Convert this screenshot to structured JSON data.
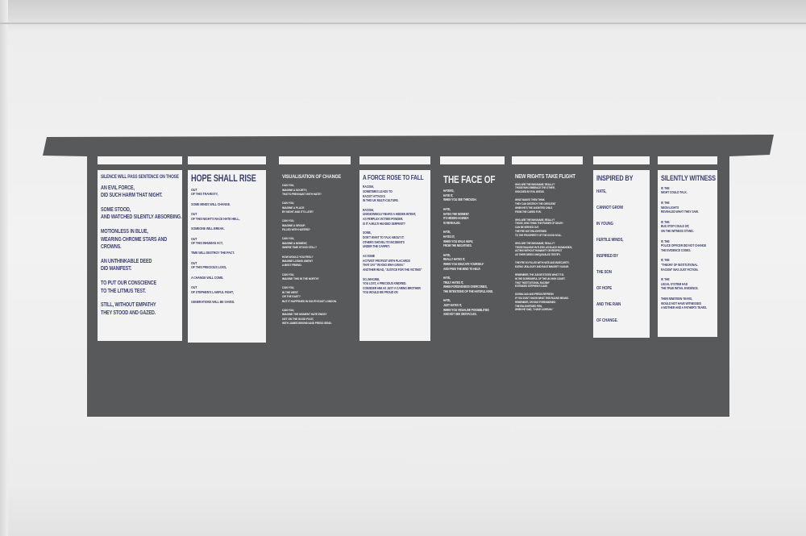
{
  "colors": {
    "board": "#58595b",
    "panel_light": "#f3f3f4",
    "text_light_panel": "#3b3f6d",
    "text_dark_panel": "#f1f1f1",
    "wall": "#f0f0f0"
  },
  "panels": [
    {
      "title": "SILENCE WILL PASS SENTENCE ON THOSE",
      "theme": "light",
      "stanzas": [
        [
          "AN EVIL FORCE,",
          "DID SUCH HARM THAT NIGHT."
        ],
        [
          "SOME STOOD,",
          "AND WATCHED SILENTLY ABSORBING."
        ],
        [
          "MOTIONLESS IN BLUE,",
          "WEARING CHROME STARS AND",
          "CROWNS."
        ],
        [
          "AN UNTHINKABLE DEED",
          "DID MANIFEST."
        ],
        [
          "TO PUT OUR CONSCIENCE",
          "TO THE LITMUS TEST."
        ],
        [
          "STILL, WITHOUT EMPATHY",
          "THEY STOOD AND GAZED."
        ]
      ]
    },
    {
      "title": "HOPE SHALL RISE",
      "theme": "light",
      "stanzas": [
        [
          "OUT",
          "OF THIS TRAVESTY,"
        ],
        [
          "SOME MINDS WILL CHANGE."
        ],
        [
          "OUT",
          "OF THIS NIGHT'S RACE HATE HELL,"
        ],
        [
          "SOMEONE WILL BREAK."
        ],
        [
          "OUT",
          "OF THIS INHUMAN ACT,"
        ],
        [
          "TIME WILL DESTROY THE PACT."
        ],
        [
          "OUT",
          "OF THIS PRECIOUS LOSS,"
        ],
        [
          "A CHANGE WILL COME."
        ],
        [
          "OUT",
          "OF STEPHEN'S LAWFUL FIGHT,"
        ],
        [
          "GENERATIONS WILL BE SAVED."
        ]
      ]
    },
    {
      "title": "VISUALISATION OF CHANGE",
      "theme": "dark",
      "stanzas": [
        [
          "CAN YOU,",
          "IMAGINE A SOCIETY,",
          "THAT'S PREGNANT WITH HATE?"
        ],
        [
          "CAN YOU,",
          "IMAGINE A PLACE",
          "BY NIGHT AND IT'S LATE?"
        ],
        [
          "CAN YOU,",
          "IMAGINE A GROUP,",
          "FILLED WITH HATERS?"
        ],
        [
          "CAN YOU,",
          "IMAGINE A MOMENT,",
          "WHERE TIME STOOD STILL?"
        ],
        [
          "HOW WOULD YOU FEEL?",
          "IMAGINE LOSING ANEW?",
          "A BEST FRIEND."
        ],
        [
          "CAN YOU,",
          "IMAGINE THIS IN THE NORTH?"
        ],
        [
          "CAN YOU,",
          "IN THE WEST",
          "OR THE EAST?",
          "BUT IT HAPPENED IN SOUTH EAST LONDON."
        ],
        [
          "CAN YOU,",
          "IMAGINE THE MOMENT HATE ENDS?",
          "GET ON THE GOOD FOOT,",
          "WITH JAMES BROWN AND PRESS SEND."
        ]
      ]
    },
    {
      "title": "A FORCE ROSE TO FALL",
      "theme": "light",
      "stanzas": [
        [
          "RACISM,",
          "SOMETIMES LEADS TO",
          "RACIST ATTACKS",
          "IN THIS UK MULTI-CULTURE."
        ],
        [
          "RACISM,",
          "UNKNOWINGLY REARS A HIDDEN INTENT,",
          "AS PERPLEX VICTIMS PONDER.",
          "IS IT A MULTI HEADED SERPENT?"
        ],
        [
          "SOME,",
          "DON'T WANT TO TALK ABOUT IT.",
          "OTHERS SHOVEL ITS INCIDENTS",
          "UNDER THE CARPET."
        ],
        [
          "AS SOME",
          "ACTIVIST PROTEST WITH PLACARDS",
          "THAT SAY \"WI KNO WHA GWAN.\"",
          "ANOTHER READ, \"JUSTICE FOR THE VICTIMS\""
        ],
        [
          "SO, IMAGINE,",
          "YOU LOST, A PRECIOUS KINDRED.",
          "CONSIDER HIM AS JUST A CARING BROTHER",
          "YOU WOULD BE PROUD OF."
        ]
      ]
    },
    {
      "title": "THE FACE OF",
      "theme": "dark",
      "stanzas": [
        [
          "HATERS,",
          "HATE IT,",
          "WHEN YOU SEE THROUGH."
        ],
        [
          "HATE,",
          "HATES THE MOMENT",
          "ITS HIDDEN AGENDA",
          "IS REVEALED."
        ],
        [
          "HATE,",
          "HATES IT,",
          "WHEN YOU WALK AWAY,",
          "FROM THE NEGATIVES."
        ],
        [
          "HATE,",
          "REALLY HATES IT,",
          "WHEN YOU EDUCATE YOURSELF",
          "AND FREE THE MIND TO HELP."
        ],
        [
          "HATE,",
          "TRULY HATES IT,",
          "WHEN FORGIVENESS OVERCOMES,",
          "THE INTENTIONS OF THE HATEFUL KIND."
        ],
        [
          "HATE,",
          "JUST HATES IT,",
          "WHEN YOU VISUALISE POSSIBILITIES",
          "AND NOT SEE OBSTACLES."
        ]
      ]
    },
    {
      "title": "NEW RIGHTS TAKE FLIGHT",
      "theme": "dark",
      "stanzas": [
        [
          "WHO ARE THE INHUMANE, REALLY?",
          "THOSE WHO EMBRACE THE OTHER,",
          "SHOCKED BY EVIL DEEDS."
        ],
        [
          "WHAT MAKES THEM THINK",
          "THEY CAN DESTROY THE CRESCENT",
          "WHEN HE'S THE ANOINTED CHILD",
          "FROM THE CARED FOR."
        ],
        [
          "WHO ARE THE INHUMANE, REALLY?",
          "THOSE, WHO THINK THE POWER OF DEATH",
          "CAN BE SERVED OUT.",
          "THEY'RE NOT ENLIGHTENED",
          "TO THE PROSPERITY OF THE GOOD SOUL."
        ],
        [
          "WHO ARE THE INHUMANE, REALLY?",
          "THOSE WALKING IN FLESH, AS BLACK HUMANOIDS,",
          "ACTING WITHOUT HUMANITY OR RESPECT",
          "AS THEIR DEEDS UNEQUIVALED TESTIFY."
        ],
        [
          "THEY'RE SO FILLED WITH HATE AND INSECURITY,",
          "EATING JEALOUSY AND RACE MINORITY SUGAR."
        ],
        [
          "REMEMBER, THE JUDGE STATED WHAT IT IS.",
          "IN THE SORROWFUL OF THE UK HIGH COURT.",
          "THAT \"INSTITUTIONAL RACISM\"",
          "EXTENDED STEPHEN'S CASE."
        ],
        [
          "DOWNLOAD AND PRESS REFRESH",
          "IF YOU DON'T KNOW WHAT THIS RULING MEANS.",
          "REMEMBER, DR KING FOREWARNED",
          "THE ENLIGHTENED FEW,",
          "WHEN HE SAID, \"I HAVE A DREAM.\""
        ]
      ]
    },
    {
      "title": "INSPIRED BY",
      "theme": "light",
      "stanzas": [
        [
          "HATE,"
        ],
        [
          "CANNOT GROW"
        ],
        [
          "IN YOUNG"
        ],
        [
          "FERTILE MINDS,"
        ],
        [
          "INSPIRED BY"
        ],
        [
          "THE SON"
        ],
        [
          "OF HOPE"
        ],
        [
          "AND THE RAIN"
        ],
        [
          "OF CHANGE."
        ]
      ]
    },
    {
      "title": "SILENTLY WITNESS",
      "theme": "light",
      "stanzas": [
        [
          "IF, THE",
          "NIGHT COULD TALK."
        ],
        [
          "IF, THE",
          "NEON LIGHTS",
          "REVEALED WHAT THEY SAW."
        ],
        [
          "IF, THE",
          "BUS STOP COULD SIT,",
          "ON THE WITNESS STAND."
        ],
        [
          "IF, THE",
          "POLICE OFFICER DID NOT CHANGE",
          "THE EVIDENCE CODES."
        ],
        [
          "IF, THE",
          "\"THEORY OF INSTITUTIONAL",
          "RACISM\" WAS JUST FICTION."
        ],
        [
          "IF, THE",
          "LEGAL SYSTEM HAD",
          "THE TRUE INITIAL EVIDENCE."
        ],
        [
          "THEN NINETEEN YEARS,",
          "WOULD NOT HAVE WITNESSED",
          "A MOTHER AND A FATHER'S TEARS."
        ]
      ]
    }
  ]
}
